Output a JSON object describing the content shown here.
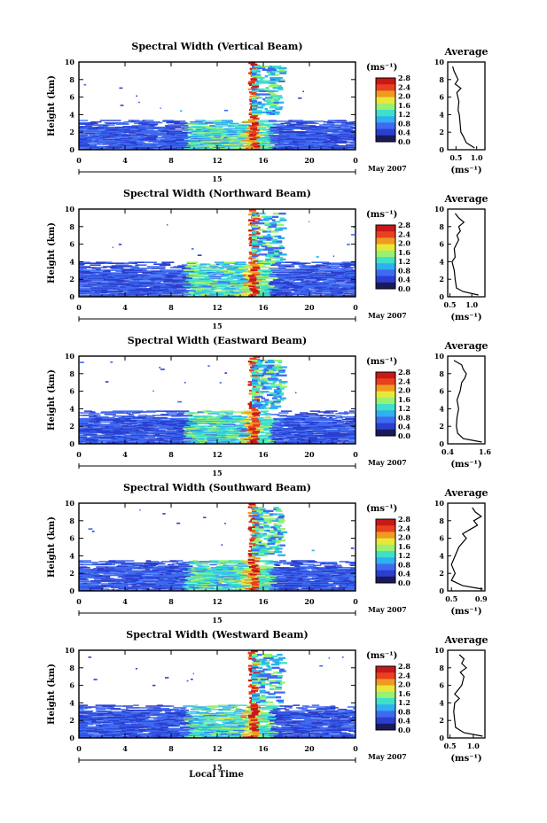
{
  "figure": {
    "xlabel": "Local Time",
    "date_label": "May 2007",
    "day_label": "15",
    "average_title": "Average",
    "units_label": "(ms⁻¹)",
    "ylabel": "Height (km)"
  },
  "colorbar": {
    "ticks": [
      "0.0",
      "0.4",
      "0.8",
      "1.2",
      "1.6",
      "2.0",
      "2.4",
      "2.8"
    ],
    "colors": [
      "#1a1a5a",
      "#2a3fd0",
      "#3f6af0",
      "#2fb0f0",
      "#3fe0c8",
      "#9af070",
      "#e8e83a",
      "#f09a20",
      "#e84020",
      "#c81818"
    ]
  },
  "chart_data": [
    {
      "type": "heatmap",
      "title": "Spectral Width (Vertical Beam)",
      "xlim": [
        0,
        24
      ],
      "ylim": [
        0,
        10
      ],
      "xticks": [
        "0",
        "4",
        "8",
        "12",
        "16",
        "20",
        "0"
      ],
      "yticks": [
        "0",
        "2",
        "4",
        "6",
        "8",
        "10"
      ],
      "zlim": [
        0.0,
        2.8
      ],
      "spike_hour": 15.2,
      "upper_patch_hours": [
        15,
        17.5
      ],
      "boundary_layer_top_km": 3.4,
      "profile": {
        "type": "line",
        "title": "Average",
        "xticks": [
          "0.5",
          "1.0"
        ],
        "xlim": [
          0.3,
          1.2
        ],
        "yticks": [
          "0",
          "2",
          "4",
          "6",
          "8",
          "10"
        ],
        "ylim": [
          0,
          10
        ],
        "height_km": [
          0.2,
          0.8,
          1.5,
          2.0,
          3.0,
          4.0,
          4.5,
          5.5,
          6.5,
          7.0,
          7.5,
          8.0,
          8.5,
          9.0,
          9.5
        ],
        "width": [
          0.95,
          0.75,
          0.68,
          0.62,
          0.6,
          0.58,
          0.55,
          0.57,
          0.52,
          0.62,
          0.48,
          0.55,
          0.5,
          0.45,
          0.42
        ]
      }
    },
    {
      "type": "heatmap",
      "title": "Spectral Width (Northward Beam)",
      "xlim": [
        0,
        24
      ],
      "ylim": [
        0,
        10
      ],
      "xticks": [
        "0",
        "4",
        "8",
        "12",
        "16",
        "20",
        "0"
      ],
      "yticks": [
        "0",
        "2",
        "4",
        "6",
        "8",
        "10"
      ],
      "zlim": [
        0.0,
        2.8
      ],
      "spike_hour": 15.2,
      "upper_patch_hours": [
        15,
        17.5
      ],
      "boundary_layer_top_km": 4.0,
      "profile": {
        "type": "line",
        "title": "Average",
        "xticks": [
          "0.5",
          "1.0"
        ],
        "xlim": [
          0.45,
          1.3
        ],
        "yticks": [
          "0",
          "2",
          "4",
          "6",
          "8",
          "10"
        ],
        "ylim": [
          0,
          10
        ],
        "height_km": [
          0.2,
          0.6,
          1.0,
          2.0,
          3.0,
          4.0,
          4.5,
          5.5,
          6.5,
          7.0,
          7.5,
          8.0,
          8.5,
          9.0,
          9.5
        ],
        "width": [
          1.15,
          0.8,
          0.65,
          0.62,
          0.6,
          0.55,
          0.62,
          0.6,
          0.7,
          0.66,
          0.74,
          0.7,
          0.82,
          0.7,
          0.62
        ]
      }
    },
    {
      "type": "heatmap",
      "title": "Spectral Width (Eastward Beam)",
      "xlim": [
        0,
        24
      ],
      "ylim": [
        0,
        10
      ],
      "xticks": [
        "0",
        "4",
        "8",
        "12",
        "16",
        "20",
        "0"
      ],
      "yticks": [
        "0",
        "2",
        "4",
        "6",
        "8",
        "10"
      ],
      "zlim": [
        0.0,
        2.8
      ],
      "spike_hour": 15.2,
      "upper_patch_hours": [
        15,
        17.5
      ],
      "boundary_layer_top_km": 3.8,
      "profile": {
        "type": "line",
        "title": "Average",
        "xticks": [
          "0.4",
          "1.6"
        ],
        "xlim": [
          0.4,
          1.6
        ],
        "yticks": [
          "0",
          "2",
          "4",
          "6",
          "8",
          "10"
        ],
        "ylim": [
          0,
          10
        ],
        "height_km": [
          0.2,
          0.6,
          1.2,
          2.0,
          3.0,
          4.0,
          5.0,
          6.0,
          7.0,
          7.5,
          8.0,
          8.5,
          9.0,
          9.5
        ],
        "width": [
          1.5,
          0.9,
          0.72,
          0.68,
          0.7,
          0.75,
          0.7,
          0.8,
          0.85,
          0.95,
          1.0,
          0.9,
          0.85,
          0.6
        ]
      }
    },
    {
      "type": "heatmap",
      "title": "Spectral Width (Southward Beam)",
      "xlim": [
        0,
        24
      ],
      "ylim": [
        0,
        10
      ],
      "xticks": [
        "0",
        "4",
        "8",
        "12",
        "16",
        "20",
        "0"
      ],
      "yticks": [
        "0",
        "2",
        "4",
        "6",
        "8",
        "10"
      ],
      "zlim": [
        0.0,
        2.8
      ],
      "spike_hour": 15.2,
      "upper_patch_hours": [
        15,
        17.5
      ],
      "boundary_layer_top_km": 3.5,
      "profile": {
        "type": "line",
        "title": "Average",
        "xticks": [
          "0.5",
          "0.9"
        ],
        "xlim": [
          0.45,
          0.95
        ],
        "yticks": [
          "0",
          "2",
          "4",
          "6",
          "8",
          "10"
        ],
        "ylim": [
          0,
          10
        ],
        "height_km": [
          0.2,
          0.6,
          1.2,
          2.0,
          3.0,
          4.0,
          5.0,
          6.0,
          6.5,
          7.0,
          7.5,
          8.0,
          8.5,
          9.0,
          9.5
        ],
        "width": [
          0.92,
          0.65,
          0.5,
          0.55,
          0.5,
          0.55,
          0.6,
          0.7,
          0.65,
          0.75,
          0.85,
          0.8,
          0.9,
          0.82,
          0.78
        ]
      }
    },
    {
      "type": "heatmap",
      "title": "Spectral Width (Westward Beam)",
      "xlim": [
        0,
        24
      ],
      "ylim": [
        0,
        10
      ],
      "xticks": [
        "0",
        "4",
        "8",
        "12",
        "16",
        "20",
        "0"
      ],
      "yticks": [
        "0",
        "2",
        "4",
        "6",
        "8",
        "10"
      ],
      "zlim": [
        0.0,
        2.8
      ],
      "spike_hour": 15.2,
      "upper_patch_hours": [
        15,
        17.5
      ],
      "boundary_layer_top_km": 3.8,
      "profile": {
        "type": "line",
        "title": "Average",
        "xticks": [
          "0.5",
          "1.0"
        ],
        "xlim": [
          0.45,
          1.25
        ],
        "yticks": [
          "0",
          "2",
          "4",
          "6",
          "8",
          "10"
        ],
        "ylim": [
          0,
          10
        ],
        "height_km": [
          0.2,
          0.6,
          1.2,
          2.0,
          3.0,
          4.0,
          4.5,
          5.0,
          6.0,
          7.0,
          7.5,
          8.0,
          8.5,
          9.0,
          9.5
        ],
        "width": [
          1.2,
          0.8,
          0.62,
          0.6,
          0.58,
          0.6,
          0.7,
          0.6,
          0.75,
          0.8,
          0.72,
          0.85,
          0.75,
          0.8,
          0.7
        ]
      }
    }
  ]
}
